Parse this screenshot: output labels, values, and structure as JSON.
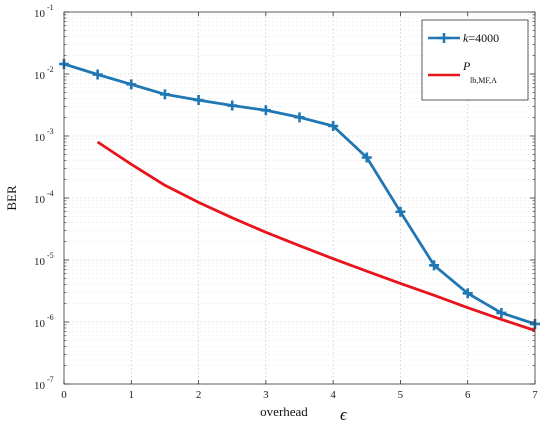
{
  "chart_data": {
    "type": "line",
    "xlabel": "overhead",
    "xlabel_symbol": "ϵ",
    "ylabel": "BER",
    "xlim": [
      0,
      7
    ],
    "ylim": [
      1e-07,
      0.1
    ],
    "yscale": "log",
    "grid": true,
    "legend_position": "top-right",
    "x_ticks": [
      "0",
      "1",
      "2",
      "3",
      "4",
      "5",
      "6",
      "7"
    ],
    "y_ticks": [
      {
        "base": "10",
        "exp": "-7"
      },
      {
        "base": "10",
        "exp": "-6"
      },
      {
        "base": "10",
        "exp": "-5"
      },
      {
        "base": "10",
        "exp": "-4"
      },
      {
        "base": "10",
        "exp": "-3"
      },
      {
        "base": "10",
        "exp": "-2"
      },
      {
        "base": "10",
        "exp": "-1"
      }
    ],
    "series": [
      {
        "name_prefix": "k",
        "name_suffix": "=4000",
        "color": "#1f77b4",
        "marker": "plus",
        "x": [
          0,
          0.5,
          1,
          1.5,
          2,
          2.5,
          3,
          3.5,
          4,
          4.5,
          5,
          5.5,
          6,
          6.5,
          7
        ],
        "y": [
          0.0145,
          0.0098,
          0.0068,
          0.0047,
          0.0038,
          0.0031,
          0.0026,
          0.002,
          0.00145,
          0.00045,
          6e-05,
          8.2e-06,
          2.9e-06,
          1.4e-06,
          9.3e-07
        ]
      },
      {
        "name_main": "P",
        "name_sub": "lb,MF,A",
        "color": "#e8141c",
        "marker": "none",
        "x": [
          0.5,
          1,
          1.5,
          2,
          2.5,
          3,
          3.5,
          4,
          4.5,
          5,
          5.5,
          6,
          6.5,
          7
        ],
        "y": [
          0.0008,
          0.00035,
          0.00016,
          8.5e-05,
          4.8e-05,
          2.8e-05,
          1.7e-05,
          1.05e-05,
          6.6e-06,
          4.2e-06,
          2.7e-06,
          1.7e-06,
          1.1e-06,
          7.3e-07
        ]
      }
    ]
  }
}
